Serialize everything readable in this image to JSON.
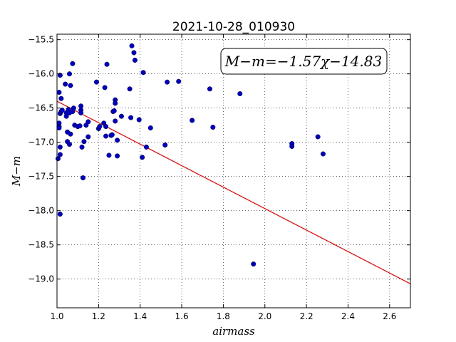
{
  "chart_data": {
    "type": "scatter",
    "title": "2021-10-28_010930",
    "xlabel": "airmass",
    "ylabel": "M−m",
    "xlim": [
      1.0,
      2.7
    ],
    "ylim": [
      -19.42,
      -15.42
    ],
    "y_inverted": true,
    "grid": true,
    "x_ticks": [
      1.0,
      1.2,
      1.4,
      1.6,
      1.8,
      2.0,
      2.2,
      2.4,
      2.6
    ],
    "x_tick_labels": [
      "1.0",
      "1.2",
      "1.4",
      "1.6",
      "1.8",
      "2.0",
      "2.2",
      "2.4",
      "2.6"
    ],
    "y_ticks": [
      -15.5,
      -16.0,
      -16.5,
      -17.0,
      -17.5,
      -18.0,
      -18.5,
      -19.0
    ],
    "y_tick_labels": [
      "−15.5",
      "−16.0",
      "−16.5",
      "−17.0",
      "−17.5",
      "−18.0",
      "−18.5",
      "−19.0"
    ],
    "annotation": "M−m=−1.57χ−14.83",
    "point_color": "#0000cc",
    "fit_color": "#ee0000",
    "fit": {
      "slope": -1.57,
      "intercept": -14.83
    },
    "points": [
      [
        1.005,
        -17.24
      ],
      [
        1.01,
        -16.27
      ],
      [
        1.01,
        -16.72
      ],
      [
        1.01,
        -16.77
      ],
      [
        1.01,
        -16.79
      ],
      [
        1.015,
        -16.02
      ],
      [
        1.015,
        -16.58
      ],
      [
        1.015,
        -17.07
      ],
      [
        1.015,
        -17.18
      ],
      [
        1.015,
        -18.05
      ],
      [
        1.02,
        -16.36
      ],
      [
        1.02,
        -16.55
      ],
      [
        1.025,
        -16.53
      ],
      [
        1.04,
        -16.15
      ],
      [
        1.045,
        -16.57
      ],
      [
        1.045,
        -16.62
      ],
      [
        1.05,
        -16.99
      ],
      [
        1.05,
        -16.85
      ],
      [
        1.055,
        -16.52
      ],
      [
        1.06,
        -16.0
      ],
      [
        1.06,
        -16.57
      ],
      [
        1.06,
        -17.03
      ],
      [
        1.065,
        -16.17
      ],
      [
        1.065,
        -16.88
      ],
      [
        1.075,
        -15.85
      ],
      [
        1.075,
        -16.55
      ],
      [
        1.08,
        -16.5
      ],
      [
        1.085,
        -16.75
      ],
      [
        1.1,
        -16.77
      ],
      [
        1.11,
        -16.76
      ],
      [
        1.115,
        -16.47
      ],
      [
        1.115,
        -16.53
      ],
      [
        1.115,
        -16.57
      ],
      [
        1.12,
        -17.07
      ],
      [
        1.125,
        -17.52
      ],
      [
        1.13,
        -16.99
      ],
      [
        1.14,
        -16.75
      ],
      [
        1.15,
        -16.7
      ],
      [
        1.15,
        -16.92
      ],
      [
        1.19,
        -16.12
      ],
      [
        1.2,
        -16.8
      ],
      [
        1.205,
        -16.77
      ],
      [
        1.225,
        -16.72
      ],
      [
        1.23,
        -16.2
      ],
      [
        1.235,
        -16.77
      ],
      [
        1.235,
        -16.91
      ],
      [
        1.24,
        -15.86
      ],
      [
        1.25,
        -17.19
      ],
      [
        1.26,
        -16.9
      ],
      [
        1.265,
        -16.89
      ],
      [
        1.27,
        -16.55
      ],
      [
        1.275,
        -16.54
      ],
      [
        1.28,
        -16.38
      ],
      [
        1.28,
        -16.43
      ],
      [
        1.28,
        -16.69
      ],
      [
        1.29,
        -16.97
      ],
      [
        1.29,
        -17.2
      ],
      [
        1.31,
        -16.62
      ],
      [
        1.35,
        -16.22
      ],
      [
        1.355,
        -16.64
      ],
      [
        1.36,
        -15.59
      ],
      [
        1.37,
        -15.69
      ],
      [
        1.375,
        -15.8
      ],
      [
        1.395,
        -16.67
      ],
      [
        1.41,
        -17.22
      ],
      [
        1.415,
        -15.98
      ],
      [
        1.43,
        -17.07
      ],
      [
        1.45,
        -16.79
      ],
      [
        1.52,
        -17.04
      ],
      [
        1.53,
        -16.12
      ],
      [
        1.585,
        -16.11
      ],
      [
        1.65,
        -16.68
      ],
      [
        1.735,
        -16.22
      ],
      [
        1.75,
        -16.78
      ],
      [
        1.88,
        -16.29
      ],
      [
        1.945,
        -18.78
      ],
      [
        2.13,
        -17.02
      ],
      [
        2.13,
        -17.06
      ],
      [
        2.255,
        -16.92
      ],
      [
        2.28,
        -17.17
      ]
    ]
  }
}
